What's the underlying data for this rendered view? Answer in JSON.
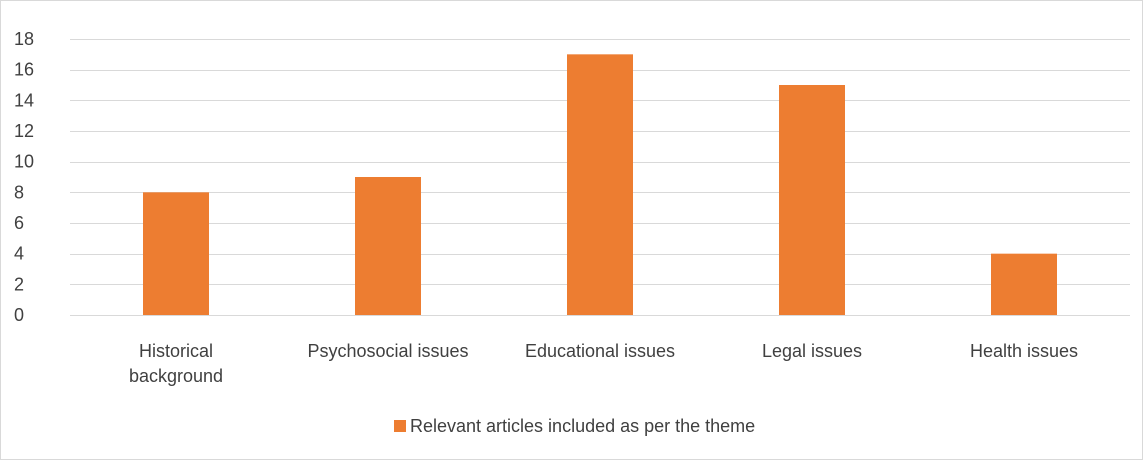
{
  "chart_data": {
    "type": "bar",
    "title": "",
    "xlabel": "",
    "ylabel": "",
    "categories": [
      "Historical background",
      "Psychosocial issues",
      "Educational issues",
      "Legal issues",
      "Health issues"
    ],
    "category_lines": [
      [
        "Historical",
        "background"
      ],
      [
        "Psychosocial issues"
      ],
      [
        "Educational issues"
      ],
      [
        "Legal issues"
      ],
      [
        "Health issues"
      ]
    ],
    "series": [
      {
        "name": "Relevant articles included as per the theme",
        "values": [
          8,
          9,
          17,
          15,
          4
        ],
        "color": "#ed7d31"
      }
    ],
    "ylim": [
      0,
      18
    ],
    "yticks": [
      0,
      2,
      4,
      6,
      8,
      10,
      12,
      14,
      16,
      18
    ],
    "grid": true,
    "legend_position": "bottom",
    "colors": {
      "bar": "#ed7d31",
      "grid": "#d9d9d9",
      "text": "#404040",
      "axis": "#d9d9d9"
    }
  }
}
